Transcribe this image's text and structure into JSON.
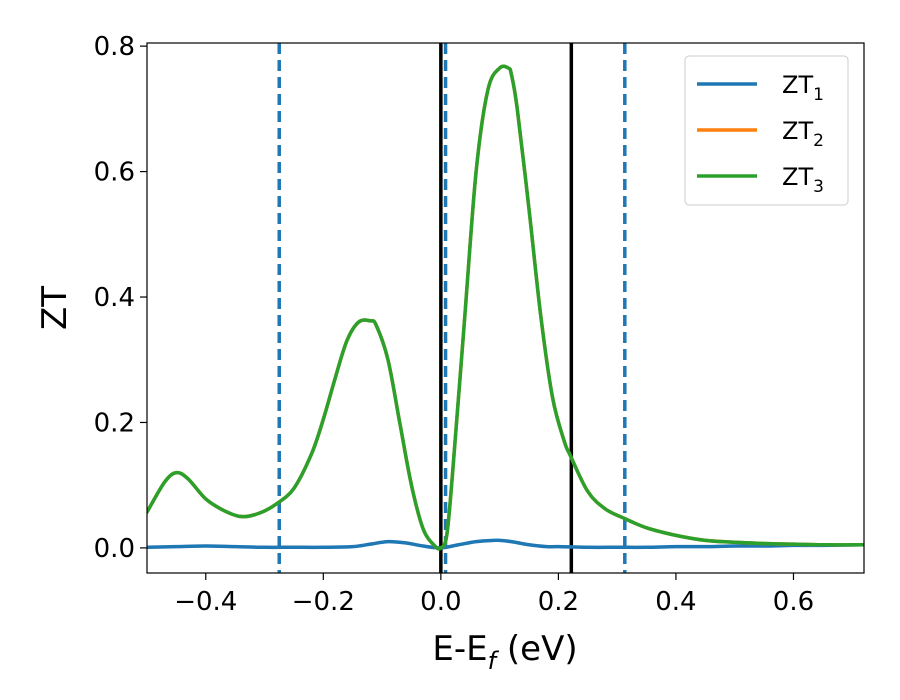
{
  "chart_data": {
    "type": "line",
    "xlabel": {
      "main": "E-E",
      "sub": "f",
      "tail": " (eV)"
    },
    "ylabel": "ZT",
    "xlim": [
      -0.5,
      0.72
    ],
    "ylim": [
      -0.04,
      0.805
    ],
    "xticks": [
      {
        "value": -0.4,
        "label": "−0.4"
      },
      {
        "value": -0.2,
        "label": "−0.2"
      },
      {
        "value": 0.0,
        "label": "0.0"
      },
      {
        "value": 0.2,
        "label": "0.2"
      },
      {
        "value": 0.4,
        "label": "0.4"
      },
      {
        "value": 0.6,
        "label": "0.6"
      }
    ],
    "yticks": [
      {
        "value": 0.0,
        "label": "0.0"
      },
      {
        "value": 0.2,
        "label": "0.2"
      },
      {
        "value": 0.4,
        "label": "0.4"
      },
      {
        "value": 0.6,
        "label": "0.6"
      },
      {
        "value": 0.8,
        "label": "0.8"
      }
    ],
    "grid": false,
    "legend_position": "top-right",
    "series": [
      {
        "name": "ZT1",
        "label_main": "ZT",
        "label_sub": "1",
        "color": "#1f77b4",
        "x": [
          -0.5,
          -0.45,
          -0.4,
          -0.35,
          -0.3,
          -0.25,
          -0.2,
          -0.15,
          -0.12,
          -0.09,
          -0.06,
          -0.03,
          0.0,
          0.03,
          0.06,
          0.09,
          0.1,
          0.12,
          0.15,
          0.18,
          0.2,
          0.25,
          0.3,
          0.35,
          0.4,
          0.45,
          0.5,
          0.55,
          0.6,
          0.65,
          0.72
        ],
        "y": [
          0.001,
          0.002,
          0.003,
          0.002,
          0.001,
          0.001,
          0.001,
          0.002,
          0.006,
          0.01,
          0.008,
          0.003,
          0.0,
          0.005,
          0.01,
          0.012,
          0.012,
          0.01,
          0.005,
          0.002,
          0.002,
          0.001,
          0.001,
          0.001,
          0.002,
          0.002,
          0.003,
          0.003,
          0.004,
          0.004,
          0.005
        ]
      },
      {
        "name": "ZT2",
        "label_main": "ZT",
        "label_sub": "2",
        "color": "#ff7f0e",
        "x": [
          -0.5,
          -0.47,
          -0.45,
          -0.43,
          -0.4,
          -0.37,
          -0.34,
          -0.31,
          -0.28,
          -0.25,
          -0.22,
          -0.2,
          -0.18,
          -0.16,
          -0.14,
          -0.12,
          -0.11,
          -0.09,
          -0.07,
          -0.05,
          -0.03,
          -0.01,
          0.0,
          0.01,
          0.02,
          0.04,
          0.06,
          0.08,
          0.1,
          0.115,
          0.12,
          0.13,
          0.15,
          0.17,
          0.19,
          0.21,
          0.22,
          0.25,
          0.28,
          0.31,
          0.35,
          0.4,
          0.45,
          0.5,
          0.55,
          0.6,
          0.65,
          0.72
        ],
        "y": [
          0.057,
          0.105,
          0.12,
          0.11,
          0.078,
          0.06,
          0.05,
          0.055,
          0.07,
          0.095,
          0.15,
          0.205,
          0.27,
          0.33,
          0.36,
          0.362,
          0.355,
          0.3,
          0.2,
          0.1,
          0.03,
          0.003,
          0.0,
          0.02,
          0.12,
          0.36,
          0.6,
          0.73,
          0.765,
          0.765,
          0.755,
          0.7,
          0.54,
          0.37,
          0.24,
          0.17,
          0.148,
          0.09,
          0.062,
          0.048,
          0.032,
          0.02,
          0.012,
          0.009,
          0.007,
          0.006,
          0.005,
          0.005
        ]
      },
      {
        "name": "ZT3",
        "label_main": "ZT",
        "label_sub": "3",
        "color": "#2ca02c",
        "x": [
          -0.5,
          -0.47,
          -0.45,
          -0.43,
          -0.4,
          -0.37,
          -0.34,
          -0.31,
          -0.28,
          -0.25,
          -0.22,
          -0.2,
          -0.18,
          -0.16,
          -0.14,
          -0.12,
          -0.11,
          -0.09,
          -0.07,
          -0.05,
          -0.03,
          -0.01,
          0.0,
          0.01,
          0.02,
          0.04,
          0.06,
          0.08,
          0.1,
          0.115,
          0.12,
          0.13,
          0.15,
          0.17,
          0.19,
          0.21,
          0.22,
          0.25,
          0.28,
          0.31,
          0.35,
          0.4,
          0.45,
          0.5,
          0.55,
          0.6,
          0.65,
          0.72
        ],
        "y": [
          0.057,
          0.105,
          0.12,
          0.11,
          0.078,
          0.06,
          0.05,
          0.055,
          0.07,
          0.095,
          0.15,
          0.205,
          0.27,
          0.33,
          0.36,
          0.362,
          0.355,
          0.3,
          0.2,
          0.1,
          0.03,
          0.003,
          0.0,
          0.02,
          0.12,
          0.36,
          0.6,
          0.73,
          0.765,
          0.765,
          0.755,
          0.7,
          0.54,
          0.37,
          0.24,
          0.17,
          0.148,
          0.09,
          0.062,
          0.048,
          0.032,
          0.02,
          0.012,
          0.009,
          0.007,
          0.006,
          0.005,
          0.005
        ]
      }
    ],
    "vlines": [
      {
        "x": -0.275,
        "style": "dashed",
        "color": "#1f77b4"
      },
      {
        "x": 0.008,
        "style": "dashed",
        "color": "#1f77b4"
      },
      {
        "x": 0.313,
        "style": "dashed",
        "color": "#1f77b4"
      },
      {
        "x": 0.0,
        "style": "solid",
        "color": "#000000"
      },
      {
        "x": 0.222,
        "style": "solid",
        "color": "#000000"
      }
    ]
  }
}
